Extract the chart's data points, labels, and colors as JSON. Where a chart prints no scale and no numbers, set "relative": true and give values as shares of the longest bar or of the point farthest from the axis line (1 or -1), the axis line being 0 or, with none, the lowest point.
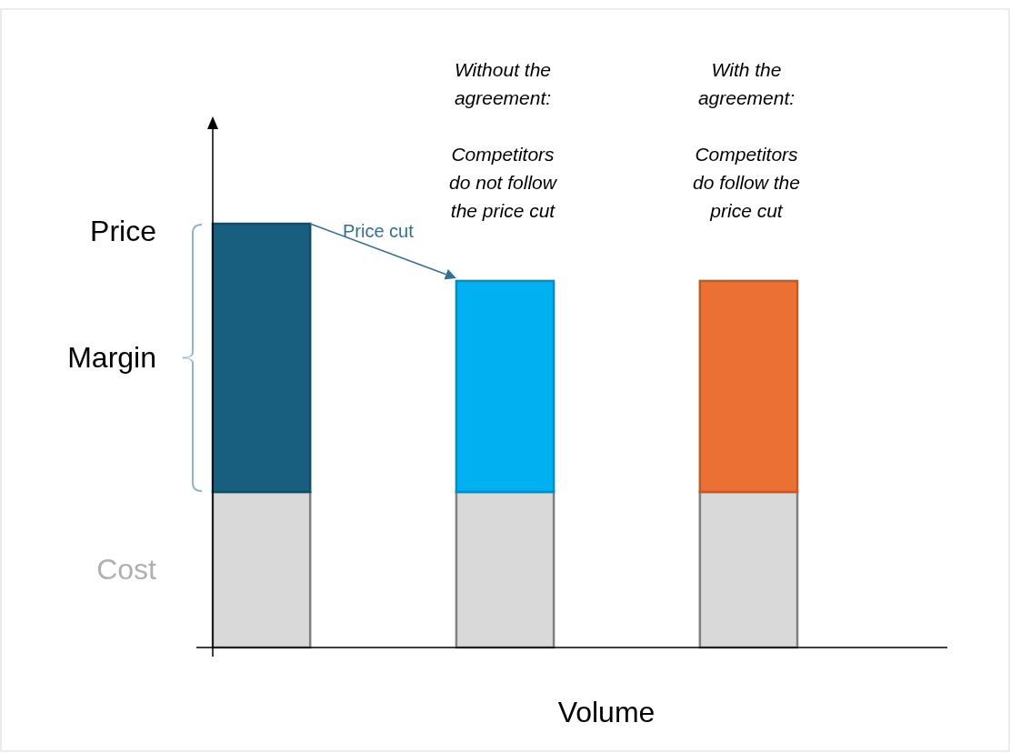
{
  "chart_data": {
    "type": "bar",
    "relative": true,
    "stacked": true,
    "xlabel": "Volume",
    "categories": [
      null,
      null,
      null
    ],
    "series": [
      {
        "name": "Cost",
        "color": "#d9d9d9",
        "values": [
          0.367,
          0.367,
          0.367
        ]
      },
      {
        "name": "Margin",
        "colors": [
          "#175e7f",
          "#00b0f0",
          "#ea7133"
        ],
        "values": [
          0.633,
          0.498,
          0.498
        ]
      }
    ],
    "annotations": [
      "Price",
      "Price cut",
      "Without the\nagreement:\n\nCompetitors\ndo not follow\nthe price cut",
      "With the\nagreement:\n\nCompetitors\ndo follow the\nprice cut"
    ]
  }
}
